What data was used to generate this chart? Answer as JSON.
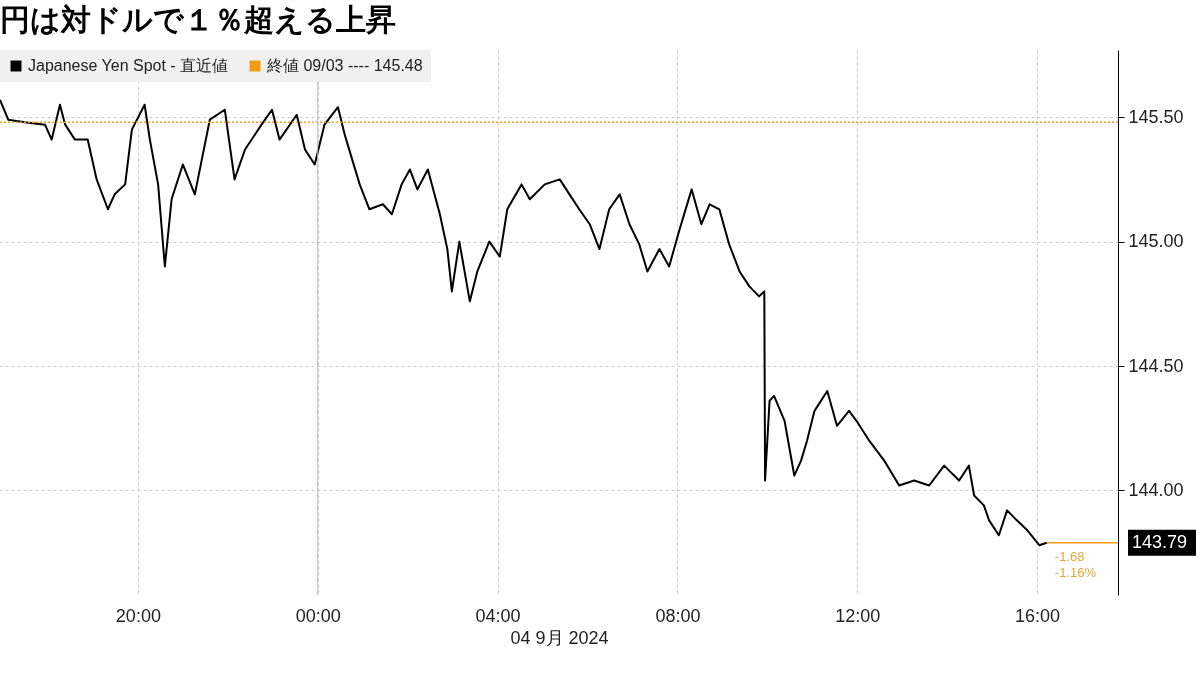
{
  "chart_data": {
    "type": "line",
    "title": "円は対ドルで１％超える上昇",
    "xlabel": "04 9月 2024",
    "x": [
      "2024-09-03T16:56",
      "2024-09-03T17:07",
      "2024-09-03T17:29",
      "2024-09-03T17:56",
      "2024-09-03T18:05",
      "2024-09-03T18:16",
      "2024-09-03T18:23",
      "2024-09-03T18:36",
      "2024-09-03T18:53",
      "2024-09-03T19:05",
      "2024-09-03T19:20",
      "2024-09-03T19:29",
      "2024-09-03T19:43",
      "2024-09-03T19:52",
      "2024-09-03T20:09",
      "2024-09-03T20:16",
      "2024-09-03T20:27",
      "2024-09-03T20:36",
      "2024-09-03T20:45",
      "2024-09-03T21:00",
      "2024-09-03T21:16",
      "2024-09-03T21:36",
      "2024-09-03T21:56",
      "2024-09-03T22:09",
      "2024-09-03T22:23",
      "2024-09-03T22:45",
      "2024-09-03T22:59",
      "2024-09-03T23:09",
      "2024-09-03T23:32",
      "2024-09-03T23:43",
      "2024-09-03T23:56",
      "2024-09-04T00:09",
      "2024-09-04T00:27",
      "2024-09-04T00:36",
      "2024-09-04T00:56",
      "2024-09-04T01:09",
      "2024-09-04T01:27",
      "2024-09-04T01:39",
      "2024-09-04T01:52",
      "2024-09-04T02:03",
      "2024-09-04T02:13",
      "2024-09-04T02:27",
      "2024-09-04T02:43",
      "2024-09-04T02:53",
      "2024-09-04T02:59",
      "2024-09-04T03:09",
      "2024-09-04T03:23",
      "2024-09-04T03:33",
      "2024-09-04T03:49",
      "2024-09-04T04:03",
      "2024-09-04T04:13",
      "2024-09-04T04:32",
      "2024-09-04T04:43",
      "2024-09-04T05:03",
      "2024-09-04T05:23",
      "2024-09-04T05:36",
      "2024-09-04T05:49",
      "2024-09-04T06:03",
      "2024-09-04T06:16",
      "2024-09-04T06:29",
      "2024-09-04T06:43",
      "2024-09-04T06:56",
      "2024-09-04T07:09",
      "2024-09-04T07:20",
      "2024-09-04T07:36",
      "2024-09-04T07:49",
      "2024-09-04T08:03",
      "2024-09-04T08:19",
      "2024-09-04T08:32",
      "2024-09-04T08:43",
      "2024-09-04T08:56",
      "2024-09-04T09:09",
      "2024-09-04T09:23",
      "2024-09-04T09:36",
      "2024-09-04T09:49",
      "2024-09-04T09:56",
      "2024-09-04T09:57",
      "2024-09-04T10:03",
      "2024-09-04T10:09",
      "2024-09-04T10:23",
      "2024-09-04T10:36",
      "2024-09-04T10:45",
      "2024-09-04T10:53",
      "2024-09-04T11:03",
      "2024-09-04T11:20",
      "2024-09-04T11:33",
      "2024-09-04T11:49",
      "2024-09-04T11:59",
      "2024-09-04T12:16",
      "2024-09-04T12:36",
      "2024-09-04T12:56",
      "2024-09-04T13:16",
      "2024-09-04T13:36",
      "2024-09-04T13:56",
      "2024-09-04T14:16",
      "2024-09-04T14:29",
      "2024-09-04T14:36",
      "2024-09-04T14:49",
      "2024-09-04T14:56",
      "2024-09-04T15:09",
      "2024-09-04T15:20",
      "2024-09-04T15:33",
      "2024-09-04T15:47",
      "2024-09-04T16:03",
      "2024-09-04T16:13"
    ],
    "series": [
      {
        "name": "Japanese Yen Spot - 直近値",
        "color": "#000000",
        "values": [
          145.57,
          145.49,
          145.48,
          145.47,
          145.41,
          145.55,
          145.47,
          145.41,
          145.41,
          145.25,
          145.13,
          145.19,
          145.23,
          145.45,
          145.55,
          145.41,
          145.23,
          144.9,
          145.17,
          145.31,
          145.19,
          145.49,
          145.53,
          145.25,
          145.37,
          145.47,
          145.53,
          145.41,
          145.51,
          145.37,
          145.31,
          145.47,
          145.54,
          145.43,
          145.23,
          145.13,
          145.15,
          145.11,
          145.23,
          145.29,
          145.21,
          145.29,
          145.11,
          144.97,
          144.8,
          145,
          144.76,
          144.88,
          145,
          144.94,
          145.13,
          145.23,
          145.17,
          145.23,
          145.25,
          145.19,
          145.13,
          145.07,
          144.97,
          145.13,
          145.19,
          145.07,
          144.99,
          144.88,
          144.97,
          144.9,
          145.05,
          145.21,
          145.07,
          145.15,
          145.13,
          144.99,
          144.88,
          144.82,
          144.78,
          144.8,
          144.04,
          144.36,
          144.38,
          144.28,
          144.06,
          144.12,
          144.2,
          144.32,
          144.4,
          144.26,
          144.32,
          144.28,
          144.2,
          144.12,
          144.02,
          144.04,
          144.02,
          144.1,
          144.04,
          144.1,
          143.98,
          143.94,
          143.88,
          143.82,
          143.92,
          143.88,
          143.84,
          143.78,
          143.79
        ],
        "value_labels": [
          null,
          null,
          null,
          null,
          null,
          null,
          null,
          null,
          null,
          null,
          null,
          null,
          null,
          null,
          null,
          null,
          null,
          null,
          null,
          null,
          null,
          null,
          null,
          null,
          null,
          null,
          null,
          null,
          null,
          null,
          null,
          null,
          null,
          null,
          null,
          null,
          null,
          null,
          null,
          null,
          null,
          null,
          null,
          null,
          null,
          null,
          null,
          null,
          null,
          null,
          null,
          null,
          null,
          null,
          null,
          null,
          null,
          null,
          null,
          null,
          null,
          null,
          null,
          null,
          null,
          null,
          null,
          null,
          null,
          null,
          null,
          null,
          null,
          null,
          null,
          null,
          null,
          null,
          null,
          null,
          null,
          null,
          null,
          null,
          null,
          null,
          null,
          null,
          null,
          null,
          null,
          null,
          null,
          null,
          null,
          null,
          null,
          null,
          null,
          null,
          null,
          null,
          null,
          null,
          "143.79"
        ]
      }
    ],
    "xlim": [
      "2024-09-03T16:56",
      "2024-09-04T17:48"
    ],
    "xticks": [
      {
        "value": "2024-09-03T20:00",
        "label": "20:00"
      },
      {
        "value": "2024-09-04T00:00",
        "label": "00:00"
      },
      {
        "value": "2024-09-04T04:00",
        "label": "04:00"
      },
      {
        "value": "2024-09-04T08:00",
        "label": "08:00"
      },
      {
        "value": "2024-09-04T12:00",
        "label": "12:00"
      },
      {
        "value": "2024-09-04T16:00",
        "label": "16:00"
      }
    ],
    "ylim": [
      143.58,
      145.77
    ],
    "yticks": [
      {
        "value": 144,
        "label": "144.00"
      },
      {
        "value": 144.5,
        "label": "144.50"
      },
      {
        "value": 145,
        "label": "145.00"
      },
      {
        "value": 145.5,
        "label": "145.50"
      }
    ],
    "grid": true,
    "legend": "top left",
    "line_style": "solid",
    "ref_lines": [
      {
        "axis": "y",
        "value": 145.48,
        "label": "終値 09/03 ---- 145.48",
        "color": "#f39c12",
        "line_style": "dotted"
      },
      {
        "axis": "x",
        "value": "2024-09-04T00:00",
        "color": "#bbbbbb",
        "line_style": "solid"
      }
    ],
    "annotations": [
      {
        "text": "-1.68",
        "x": "2024-09-04T16:13",
        "y": 143.79
      },
      {
        "text": "-1.16%",
        "x": "2024-09-04T16:13",
        "y": 143.79
      }
    ]
  }
}
